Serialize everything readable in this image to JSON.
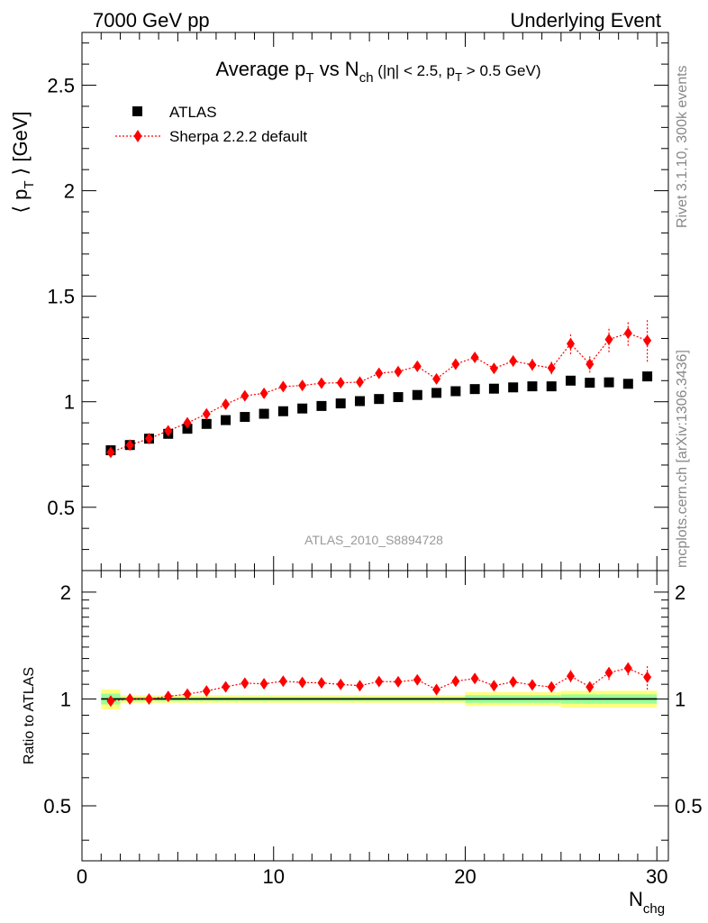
{
  "header": {
    "left": "7000 GeV pp",
    "right": "Underlying Event"
  },
  "side_texts": {
    "rivet": "Rivet 3.1.10,  300k events",
    "mcplots": "mcplots.cern.ch [arXiv:1306.3436]"
  },
  "chart_data": [
    {
      "type": "scatter",
      "title": "Average p_T vs N_ch (|η| < 2.5, p_T > 0.5 GeV)",
      "ylabel": "⟨ p_T ⟩ [GeV]",
      "xlim": [
        0,
        30.6
      ],
      "ylim": [
        0.2,
        2.75
      ],
      "yticks": [
        "0.5",
        "1",
        "1.5",
        "2",
        "2.5"
      ],
      "analysis_label": "ATLAS_2010_S8894728",
      "x": [
        1.5,
        2.5,
        3.5,
        4.5,
        5.5,
        6.5,
        7.5,
        8.5,
        9.5,
        10.5,
        11.5,
        12.5,
        13.5,
        14.5,
        15.5,
        16.5,
        17.5,
        18.5,
        19.5,
        20.5,
        21.5,
        22.5,
        23.5,
        24.5,
        25.5,
        26.5,
        27.5,
        28.5,
        29.5
      ],
      "series": [
        {
          "name": "ATLAS",
          "color": "#000000",
          "marker": "square",
          "values": [
            0.77,
            0.795,
            0.825,
            0.848,
            0.872,
            0.895,
            0.913,
            0.928,
            0.943,
            0.955,
            0.968,
            0.98,
            0.992,
            1.003,
            1.013,
            1.022,
            1.032,
            1.042,
            1.05,
            1.06,
            1.062,
            1.068,
            1.073,
            1.073,
            1.1,
            1.09,
            1.092,
            1.085,
            1.12
          ]
        },
        {
          "name": "Sherpa 2.2.2 default",
          "color": "#ff0000",
          "marker": "diamond",
          "line": "dotted",
          "values": [
            0.76,
            0.795,
            0.825,
            0.862,
            0.9,
            0.942,
            0.988,
            1.028,
            1.04,
            1.072,
            1.077,
            1.088,
            1.09,
            1.093,
            1.135,
            1.143,
            1.168,
            1.108,
            1.178,
            1.21,
            1.158,
            1.193,
            1.175,
            1.16,
            1.275,
            1.178,
            1.295,
            1.325,
            1.29
          ],
          "errors": [
            0.005,
            0.005,
            0.005,
            0.005,
            0.006,
            0.006,
            0.007,
            0.008,
            0.008,
            0.009,
            0.01,
            0.01,
            0.011,
            0.012,
            0.013,
            0.014,
            0.016,
            0.017,
            0.02,
            0.022,
            0.024,
            0.026,
            0.028,
            0.03,
            0.05,
            0.04,
            0.06,
            0.06,
            0.1
          ]
        }
      ]
    },
    {
      "type": "scatter",
      "title": "",
      "ylabel": "Ratio to ATLAS",
      "xlabel": "N_chg",
      "xlim": [
        0,
        30.6
      ],
      "ylim": [
        0.35,
        2.3
      ],
      "yticks": [
        "0.5",
        "1",
        "2"
      ],
      "xticks": [
        "0",
        "10",
        "20",
        "30"
      ],
      "band_bins": [
        [
          1,
          2
        ],
        [
          2,
          20
        ],
        [
          20,
          25
        ],
        [
          25,
          30
        ]
      ],
      "band_inner": [
        0.035,
        0.012,
        0.025,
        0.03
      ],
      "band_outer": [
        0.065,
        0.025,
        0.045,
        0.055
      ],
      "ratio_values": [
        0.987,
        1.0,
        1.0,
        1.017,
        1.032,
        1.053,
        1.082,
        1.108,
        1.103,
        1.122,
        1.113,
        1.11,
        1.099,
        1.09,
        1.12,
        1.118,
        1.132,
        1.063,
        1.122,
        1.142,
        1.09,
        1.117,
        1.095,
        1.081,
        1.16,
        1.081,
        1.186,
        1.221,
        1.152
      ],
      "ratio_errors": [
        0.01,
        0.008,
        0.008,
        0.008,
        0.008,
        0.008,
        0.009,
        0.01,
        0.01,
        0.01,
        0.01,
        0.011,
        0.012,
        0.013,
        0.013,
        0.014,
        0.016,
        0.017,
        0.019,
        0.02,
        0.022,
        0.024,
        0.026,
        0.028,
        0.045,
        0.037,
        0.055,
        0.055,
        0.09
      ]
    }
  ]
}
